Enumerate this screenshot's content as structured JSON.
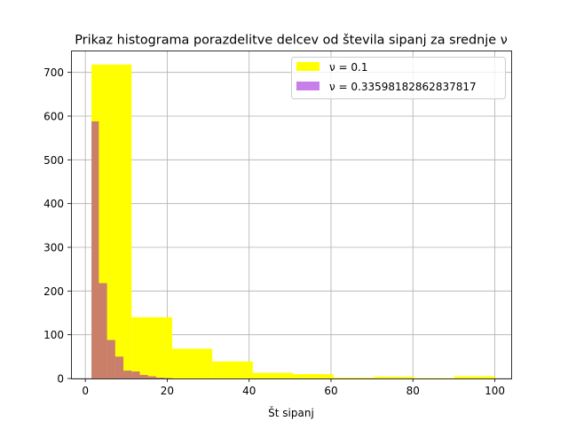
{
  "chart_data": {
    "type": "bar",
    "title": "Prikaz histograma porazdelitve delcev od števila sipanj za srednje ν",
    "xlabel": "Št sipanj",
    "ylabel": "",
    "xlim": [
      -3.5,
      104
    ],
    "ylim": [
      0,
      750
    ],
    "xticks": [
      0,
      20,
      40,
      60,
      80,
      100
    ],
    "yticks": [
      0,
      100,
      200,
      300,
      400,
      500,
      600,
      700
    ],
    "grid": true,
    "legend_position": "top-right",
    "series": [
      {
        "name": "ν = 0.1",
        "color": "#ffff00",
        "opacity": 1.0,
        "bins": [
          {
            "x0": 1.5,
            "x1": 11.3,
            "value": 718
          },
          {
            "x0": 11.3,
            "x1": 21.2,
            "value": 140
          },
          {
            "x0": 21.2,
            "x1": 31.0,
            "value": 68
          },
          {
            "x0": 31.0,
            "x1": 40.9,
            "value": 39
          },
          {
            "x0": 40.9,
            "x1": 50.7,
            "value": 13
          },
          {
            "x0": 50.7,
            "x1": 60.6,
            "value": 10
          },
          {
            "x0": 60.6,
            "x1": 70.4,
            "value": 2
          },
          {
            "x0": 70.4,
            "x1": 80.3,
            "value": 4
          },
          {
            "x0": 80.3,
            "x1": 90.1,
            "value": 1
          },
          {
            "x0": 90.1,
            "x1": 100.0,
            "value": 5
          }
        ]
      },
      {
        "name": "ν = 0.33598182862837817",
        "color": "#9400d3",
        "opacity": 0.5,
        "bins": [
          {
            "x0": 1.5,
            "x1": 3.3,
            "value": 588
          },
          {
            "x0": 3.3,
            "x1": 5.3,
            "value": 218
          },
          {
            "x0": 5.3,
            "x1": 7.3,
            "value": 88
          },
          {
            "x0": 7.3,
            "x1": 9.3,
            "value": 50
          },
          {
            "x0": 9.3,
            "x1": 11.3,
            "value": 18
          },
          {
            "x0": 11.3,
            "x1": 13.3,
            "value": 16
          },
          {
            "x0": 13.3,
            "x1": 15.3,
            "value": 8
          },
          {
            "x0": 15.3,
            "x1": 17.3,
            "value": 5
          },
          {
            "x0": 17.3,
            "x1": 19.3,
            "value": 2
          },
          {
            "x0": 19.3,
            "x1": 21.3,
            "value": 1
          }
        ]
      }
    ]
  }
}
